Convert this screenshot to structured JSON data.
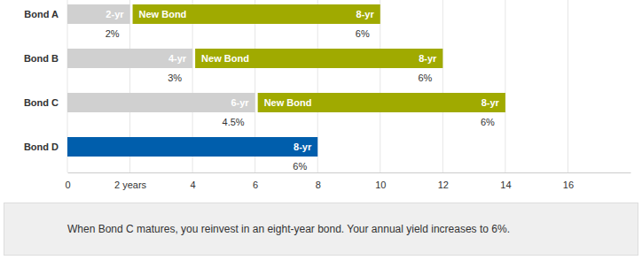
{
  "chart_data": {
    "type": "bar",
    "orientation": "horizontal",
    "stacked": true,
    "data_labels": true,
    "grid": true,
    "categories": [
      "Bond A",
      "Bond B",
      "Bond C",
      "Bond D"
    ],
    "xlim": [
      0,
      18
    ],
    "xticks": [
      0,
      {
        "value": 2,
        "label": "2 years"
      },
      4,
      6,
      8,
      10,
      12,
      14,
      16
    ],
    "series": [
      {
        "color": "#d0d0d0",
        "values": [
          2,
          4,
          6,
          null
        ],
        "value_labels": [
          "2-yr",
          "4-yr",
          "6-yr",
          null
        ],
        "yield_labels": [
          "2%",
          "3%",
          "4.5%",
          null
        ]
      },
      {
        "color": "#a0aa00",
        "values": [
          8,
          8,
          8,
          null
        ],
        "value_labels": [
          "8-yr",
          "8-yr",
          "8-yr",
          null
        ],
        "bar_labels": [
          "New Bond",
          "New Bond",
          "New Bond",
          null
        ],
        "yield_labels": [
          "6%",
          "6%",
          "6%",
          null
        ]
      },
      {
        "color": "#005eac",
        "values": [
          null,
          null,
          null,
          8
        ],
        "value_labels": [
          null,
          null,
          null,
          "8-yr"
        ],
        "yield_labels": [
          null,
          null,
          null,
          "6%"
        ]
      }
    ],
    "annotation": "When Bond C matures, you reinvest in an eight-year bond. Your annual yield increases to 6%."
  }
}
